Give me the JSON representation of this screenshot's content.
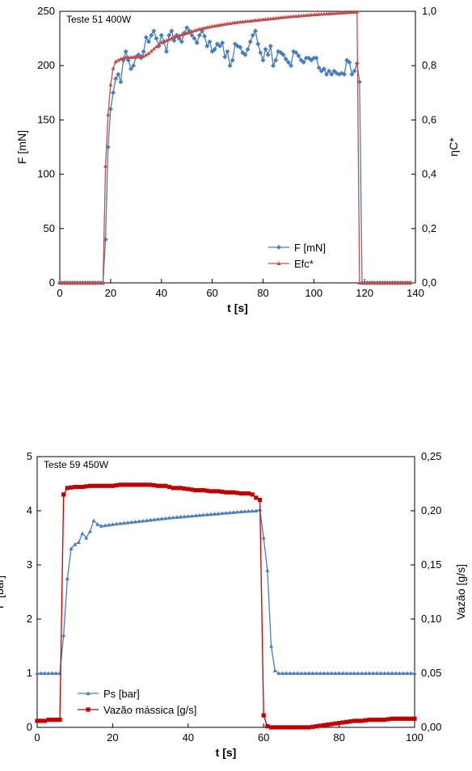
{
  "chart_data": [
    {
      "type": "line",
      "annotation": "Teste 51 400W",
      "xlabel": "t [s]",
      "ylabel": "F [mN]",
      "y2label": "ηC*",
      "xlim": [
        0,
        140
      ],
      "ylim": [
        0,
        250
      ],
      "y2lim": [
        0,
        1
      ],
      "xticks": [
        0,
        20,
        40,
        60,
        80,
        100,
        120,
        140
      ],
      "yticks": [
        0,
        50,
        100,
        150,
        200,
        250
      ],
      "y2ticks": [
        "0,0",
        "0,2",
        "0,4",
        "0,6",
        "0,8",
        "1,0"
      ],
      "grid": false,
      "legend_position": "bottom-right",
      "series": [
        {
          "name": "F [mN]",
          "axis": "left",
          "color": "#4a7ebb",
          "marker": "diamond",
          "points": [
            [
              0,
              0
            ],
            [
              16,
              0
            ],
            [
              17,
              0
            ],
            [
              18,
              40
            ],
            [
              19,
              125
            ],
            [
              20,
              160
            ],
            [
              21,
              175
            ],
            [
              22,
              188
            ],
            [
              23,
              192
            ],
            [
              24,
              185
            ],
            [
              25,
              205
            ],
            [
              26,
              213
            ],
            [
              27,
              205
            ],
            [
              28,
              197
            ],
            [
              29,
              200
            ],
            [
              30,
              208
            ],
            [
              31,
              210
            ],
            [
              32,
              207
            ],
            [
              33,
              213
            ],
            [
              34,
              226
            ],
            [
              35,
              222
            ],
            [
              36,
              228
            ],
            [
              37,
              232
            ],
            [
              38,
              225
            ],
            [
              39,
              218
            ],
            [
              40,
              228
            ],
            [
              41,
              222
            ],
            [
              42,
              213
            ],
            [
              43,
              228
            ],
            [
              44,
              232
            ],
            [
              45,
              223
            ],
            [
              46,
              228
            ],
            [
              47,
              225
            ],
            [
              48,
              222
            ],
            [
              49,
              230
            ],
            [
              50,
              235
            ],
            [
              51,
              232
            ],
            [
              52,
              228
            ],
            [
              53,
              225
            ],
            [
              54,
              221
            ],
            [
              55,
              228
            ],
            [
              56,
              232
            ],
            [
              57,
              227
            ],
            [
              58,
              218
            ],
            [
              59,
              222
            ],
            [
              60,
              213
            ],
            [
              61,
              215
            ],
            [
              62,
              220
            ],
            [
              63,
              218
            ],
            [
              64,
              221
            ],
            [
              65,
              208
            ],
            [
              66,
              213
            ],
            [
              67,
              200
            ],
            [
              68,
              205
            ],
            [
              69,
              220
            ],
            [
              70,
              218
            ],
            [
              71,
              217
            ],
            [
              72,
              212
            ],
            [
              73,
              210
            ],
            [
              74,
              215
            ],
            [
              75,
              222
            ],
            [
              76,
              228
            ],
            [
              77,
              232
            ],
            [
              78,
              220
            ],
            [
              79,
              212
            ],
            [
              80,
              205
            ],
            [
              81,
              215
            ],
            [
              82,
              210
            ],
            [
              83,
              218
            ],
            [
              84,
              200
            ],
            [
              85,
              205
            ],
            [
              86,
              213
            ],
            [
              87,
              212
            ],
            [
              88,
              210
            ],
            [
              89,
              206
            ],
            [
              90,
              203
            ],
            [
              91,
              200
            ],
            [
              92,
              213
            ],
            [
              93,
              212
            ],
            [
              94,
              209
            ],
            [
              95,
              205
            ],
            [
              96,
              203
            ],
            [
              97,
              207
            ],
            [
              98,
              207
            ],
            [
              99,
              205
            ],
            [
              100,
              207
            ],
            [
              101,
              207
            ],
            [
              102,
              198
            ],
            [
              103,
              195
            ],
            [
              104,
              197
            ],
            [
              105,
              192
            ],
            [
              106,
              195
            ],
            [
              107,
              192
            ],
            [
              108,
              195
            ],
            [
              109,
              193
            ],
            [
              110,
              192
            ],
            [
              111,
              193
            ],
            [
              112,
              192
            ],
            [
              113,
              205
            ],
            [
              114,
              203
            ],
            [
              115,
              192
            ],
            [
              116,
              195
            ],
            [
              117,
              202
            ],
            [
              118,
              185
            ],
            [
              119,
              0
            ],
            [
              120,
              0
            ],
            [
              121,
              0
            ],
            [
              138,
              0
            ]
          ]
        },
        {
          "name": "Efc*",
          "axis": "right",
          "color": "#c0504d",
          "marker": "triangle",
          "points": [
            [
              0,
              0
            ],
            [
              16,
              0
            ],
            [
              17,
              0
            ],
            [
              18,
              0.43
            ],
            [
              19,
              0.62
            ],
            [
              20,
              0.73
            ],
            [
              21,
              0.79
            ],
            [
              22,
              0.815
            ],
            [
              23,
              0.82
            ],
            [
              24,
              0.825
            ],
            [
              25,
              0.828
            ],
            [
              26,
              0.83
            ],
            [
              30,
              0.832
            ],
            [
              33,
              0.835
            ],
            [
              35,
              0.845
            ],
            [
              38,
              0.87
            ],
            [
              40,
              0.885
            ],
            [
              45,
              0.905
            ],
            [
              50,
              0.92
            ],
            [
              55,
              0.935
            ],
            [
              60,
              0.945
            ],
            [
              65,
              0.953
            ],
            [
              70,
              0.96
            ],
            [
              75,
              0.965
            ],
            [
              80,
              0.97
            ],
            [
              85,
              0.975
            ],
            [
              90,
              0.98
            ],
            [
              95,
              0.984
            ],
            [
              100,
              0.988
            ],
            [
              105,
              0.991
            ],
            [
              110,
              0.994
            ],
            [
              115,
              0.997
            ],
            [
              117,
              0.998
            ],
            [
              118,
              0
            ],
            [
              119,
              0
            ],
            [
              138,
              0
            ]
          ]
        }
      ]
    },
    {
      "type": "line",
      "annotation": "Teste 59 450W",
      "xlabel": "t [s]",
      "ylabel": "P [bar]",
      "y2label": "Vazão [g/s]",
      "xlim": [
        0,
        100
      ],
      "ylim": [
        0,
        5
      ],
      "y2lim": [
        0,
        0.25
      ],
      "xticks": [
        0,
        20,
        40,
        60,
        80,
        100
      ],
      "yticks": [
        0,
        1,
        2,
        3,
        4,
        5
      ],
      "y2ticks": [
        "0,00",
        "0,05",
        "0,10",
        "0,15",
        "0,20",
        "0,25"
      ],
      "grid": false,
      "legend_position": "bottom-left",
      "series": [
        {
          "name": "Ps [bar]",
          "axis": "left",
          "color": "#4a7ebb",
          "marker": "triangle",
          "points": [
            [
              0,
              1
            ],
            [
              6,
              1
            ],
            [
              7,
              1.7
            ],
            [
              8,
              2.75
            ],
            [
              9,
              3.3
            ],
            [
              10,
              3.38
            ],
            [
              11,
              3.42
            ],
            [
              12,
              3.58
            ],
            [
              13,
              3.5
            ],
            [
              14,
              3.62
            ],
            [
              15,
              3.82
            ],
            [
              16,
              3.75
            ],
            [
              17,
              3.72
            ],
            [
              20,
              3.75
            ],
            [
              25,
              3.79
            ],
            [
              30,
              3.83
            ],
            [
              35,
              3.87
            ],
            [
              40,
              3.9
            ],
            [
              45,
              3.93
            ],
            [
              50,
              3.96
            ],
            [
              55,
              3.99
            ],
            [
              58,
              4.0
            ],
            [
              59,
              4.02
            ],
            [
              60,
              3.5
            ],
            [
              61,
              2.9
            ],
            [
              62,
              1.5
            ],
            [
              63,
              1.05
            ],
            [
              64,
              1.0
            ],
            [
              100,
              1.0
            ]
          ]
        },
        {
          "name": "Vazão mássica [g/s]",
          "axis": "right",
          "color": "#c00000",
          "marker": "square",
          "points": [
            [
              0,
              0.006
            ],
            [
              2,
              0.006
            ],
            [
              3,
              0.007
            ],
            [
              4,
              0.007
            ],
            [
              5,
              0.007
            ],
            [
              6,
              0.007
            ],
            [
              7,
              0.215
            ],
            [
              8,
              0.221
            ],
            [
              10,
              0.222
            ],
            [
              12,
              0.222
            ],
            [
              14,
              0.223
            ],
            [
              16,
              0.223
            ],
            [
              18,
              0.223
            ],
            [
              20,
              0.223
            ],
            [
              22,
              0.224
            ],
            [
              24,
              0.224
            ],
            [
              26,
              0.224
            ],
            [
              28,
              0.224
            ],
            [
              30,
              0.224
            ],
            [
              32,
              0.223
            ],
            [
              34,
              0.223
            ],
            [
              36,
              0.221
            ],
            [
              38,
              0.221
            ],
            [
              40,
              0.22
            ],
            [
              42,
              0.219
            ],
            [
              44,
              0.219
            ],
            [
              46,
              0.218
            ],
            [
              48,
              0.218
            ],
            [
              50,
              0.217
            ],
            [
              52,
              0.217
            ],
            [
              54,
              0.216
            ],
            [
              56,
              0.216
            ],
            [
              57,
              0.215
            ],
            [
              58,
              0.212
            ],
            [
              59,
              0.21
            ],
            [
              60,
              0.011
            ],
            [
              61,
              0.001
            ],
            [
              62,
              0.0
            ],
            [
              64,
              0.0
            ],
            [
              66,
              0.0
            ],
            [
              68,
              0.0
            ],
            [
              70,
              0.0
            ],
            [
              72,
              0.0
            ],
            [
              74,
              0.001
            ],
            [
              76,
              0.002
            ],
            [
              78,
              0.003
            ],
            [
              80,
              0.004
            ],
            [
              82,
              0.005
            ],
            [
              84,
              0.006
            ],
            [
              86,
              0.006
            ],
            [
              88,
              0.007
            ],
            [
              90,
              0.007
            ],
            [
              92,
              0.007
            ],
            [
              94,
              0.008
            ],
            [
              96,
              0.008
            ],
            [
              98,
              0.008
            ],
            [
              100,
              0.008
            ]
          ]
        }
      ]
    }
  ]
}
